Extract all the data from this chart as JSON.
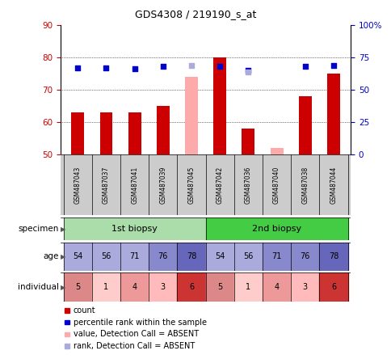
{
  "title": "GDS4308 / 219190_s_at",
  "samples": [
    "GSM487043",
    "GSM487037",
    "GSM487041",
    "GSM487039",
    "GSM487045",
    "GSM487042",
    "GSM487036",
    "GSM487040",
    "GSM487038",
    "GSM487044"
  ],
  "count_values": [
    63,
    63,
    63,
    65,
    null,
    80,
    58,
    null,
    68,
    75
  ],
  "count_absent": [
    null,
    null,
    null,
    null,
    74,
    null,
    null,
    52,
    null,
    null
  ],
  "percentile_values": [
    67,
    67,
    66,
    68,
    null,
    68,
    65,
    null,
    68,
    69
  ],
  "percentile_absent": [
    null,
    null,
    null,
    null,
    69,
    null,
    64,
    null,
    null,
    null
  ],
  "ylim": [
    50,
    90
  ],
  "y2lim": [
    0,
    100
  ],
  "yticks": [
    50,
    60,
    70,
    80,
    90
  ],
  "y2ticks": [
    0,
    25,
    50,
    75,
    100
  ],
  "specimen_groups": [
    "1st biopsy",
    "2nd biopsy"
  ],
  "specimen_spans": [
    [
      0,
      4
    ],
    [
      5,
      9
    ]
  ],
  "age_values": [
    54,
    56,
    71,
    76,
    78,
    54,
    56,
    71,
    76,
    78
  ],
  "individual_values": [
    5,
    1,
    4,
    3,
    6,
    5,
    1,
    4,
    3,
    6
  ],
  "bar_color_red": "#cc0000",
  "bar_color_pink": "#ffaaaa",
  "dot_color_blue": "#0000cc",
  "dot_color_lightblue": "#aaaadd",
  "tick_label_color_red": "#cc0000",
  "tick_label_color_blue": "#0000cc",
  "sample_bg_color": "#cccccc",
  "specimen_colors": [
    "#aaddaa",
    "#44cc44"
  ],
  "age_color": "#8888cc",
  "age_colors": [
    "#aaaadd",
    "#aaaadd",
    "#aaaadd",
    "#8888cc",
    "#6666bb",
    "#aaaadd",
    "#aaaadd",
    "#8888cc",
    "#8888cc",
    "#6666bb"
  ],
  "indiv_colors": [
    "#dd8888",
    "#ffcccc",
    "#ee9999",
    "#ffbbbb",
    "#cc3333",
    "#dd8888",
    "#ffcccc",
    "#ee9999",
    "#ffbbbb",
    "#cc3333"
  ]
}
